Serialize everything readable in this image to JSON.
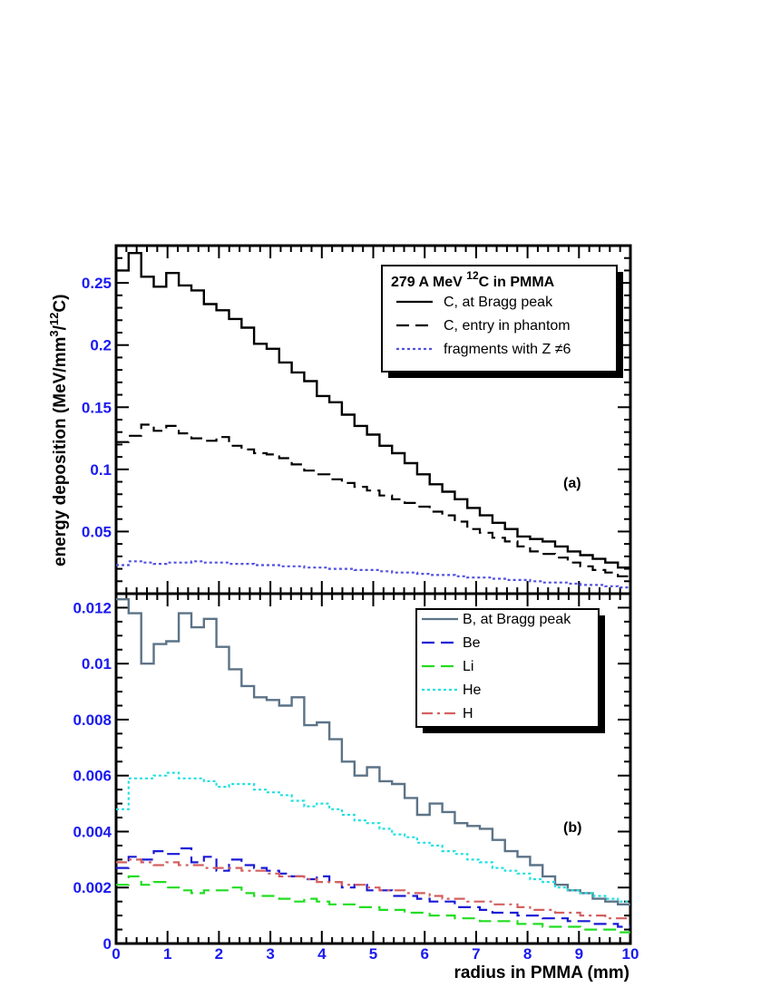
{
  "chart_data": [
    {
      "type": "line",
      "panel": "a",
      "panel_label": "(a)",
      "xlabel": "",
      "ylabel": "energy deposition (MeV/mm³/¹²C)",
      "ylabel_main": "energy deposition (MeV/mm",
      "ylabel_sup1": "3",
      "ylabel_mid": "/",
      "ylabel_sup2": "12",
      "ylabel_end": "C)",
      "xlim": [
        0,
        10
      ],
      "ylim": [
        0,
        0.28
      ],
      "yticks": [
        "0.05",
        "0.1",
        "0.15",
        "0.2",
        "0.25"
      ],
      "legend_title": "279 A MeV ¹²C in PMMA",
      "legend_title_a": "279 A MeV ",
      "legend_title_sup": "12",
      "legend_title_b": "C in PMMA",
      "legend_position": "top-right",
      "series": [
        {
          "name": "C, at Bragg peak",
          "color": "#000000",
          "style": "solid",
          "values": [
            0.26,
            0.274,
            0.255,
            0.247,
            0.258,
            0.248,
            0.244,
            0.233,
            0.228,
            0.221,
            0.214,
            0.201,
            0.197,
            0.186,
            0.178,
            0.171,
            0.159,
            0.154,
            0.144,
            0.135,
            0.128,
            0.119,
            0.113,
            0.105,
            0.096,
            0.088,
            0.082,
            0.076,
            0.069,
            0.063,
            0.057,
            0.052,
            0.046,
            0.044,
            0.042,
            0.038,
            0.034,
            0.031,
            0.028,
            0.025,
            0.021
          ]
        },
        {
          "name": "C, entry in phantom",
          "color": "#000000",
          "style": "dashed",
          "values": [
            0.122,
            0.127,
            0.136,
            0.131,
            0.135,
            0.129,
            0.125,
            0.123,
            0.126,
            0.119,
            0.116,
            0.113,
            0.112,
            0.109,
            0.104,
            0.099,
            0.096,
            0.092,
            0.089,
            0.086,
            0.083,
            0.079,
            0.076,
            0.073,
            0.07,
            0.066,
            0.063,
            0.058,
            0.052,
            0.049,
            0.045,
            0.042,
            0.038,
            0.034,
            0.032,
            0.029,
            0.025,
            0.022,
            0.019,
            0.017,
            0.014
          ]
        },
        {
          "name": "fragments with Z ≠6",
          "color": "#5050e0",
          "style": "dotted",
          "values": [
            0.023,
            0.026,
            0.025,
            0.024,
            0.025,
            0.025,
            0.026,
            0.025,
            0.025,
            0.024,
            0.024,
            0.023,
            0.023,
            0.022,
            0.022,
            0.021,
            0.021,
            0.02,
            0.02,
            0.019,
            0.019,
            0.018,
            0.017,
            0.017,
            0.016,
            0.015,
            0.015,
            0.014,
            0.013,
            0.013,
            0.012,
            0.011,
            0.011,
            0.01,
            0.009,
            0.009,
            0.008,
            0.007,
            0.007,
            0.006,
            0.005
          ]
        }
      ]
    },
    {
      "type": "line",
      "panel": "b",
      "panel_label": "(b)",
      "xlabel": "radius in PMMA (mm)",
      "ylabel": "",
      "xlim": [
        0,
        10
      ],
      "ylim": [
        0,
        0.0125
      ],
      "xticks": [
        "0",
        "1",
        "2",
        "3",
        "4",
        "5",
        "6",
        "7",
        "8",
        "9",
        "10"
      ],
      "yticks": [
        "0",
        "0.002",
        "0.004",
        "0.006",
        "0.008",
        "0.01",
        "0.012"
      ],
      "legend_position": "top-right",
      "series": [
        {
          "name": "B, at Bragg peak",
          "color": "#5c7387",
          "style": "solid",
          "values": [
            0.0123,
            0.0118,
            0.01,
            0.0107,
            0.0108,
            0.0118,
            0.0113,
            0.0116,
            0.0106,
            0.0098,
            0.0092,
            0.0088,
            0.0087,
            0.0085,
            0.0088,
            0.0078,
            0.0079,
            0.0073,
            0.0065,
            0.006,
            0.0063,
            0.0058,
            0.0057,
            0.0052,
            0.0046,
            0.005,
            0.0047,
            0.0043,
            0.0042,
            0.0041,
            0.0037,
            0.0033,
            0.0031,
            0.0028,
            0.0024,
            0.0021,
            0.0019,
            0.0018,
            0.0016,
            0.0015,
            0.0014
          ]
        },
        {
          "name": "Be",
          "color": "#1a1ad6",
          "style": "dashed",
          "values": [
            0.0027,
            0.0031,
            0.003,
            0.0033,
            0.0032,
            0.0034,
            0.0029,
            0.0031,
            0.0026,
            0.003,
            0.0028,
            0.0027,
            0.0026,
            0.0025,
            0.0024,
            0.0023,
            0.0024,
            0.0022,
            0.002,
            0.0021,
            0.0019,
            0.0019,
            0.0017,
            0.0017,
            0.0016,
            0.0015,
            0.0015,
            0.0013,
            0.0013,
            0.0012,
            0.0011,
            0.0011,
            0.001,
            0.001,
            0.0009,
            0.0009,
            0.0008,
            0.0008,
            0.0007,
            0.0007,
            0.0006
          ]
        },
        {
          "name": "Li",
          "color": "#22dd22",
          "style": "dashed",
          "values": [
            0.0021,
            0.0024,
            0.0021,
            0.0022,
            0.002,
            0.0019,
            0.0018,
            0.0019,
            0.0019,
            0.002,
            0.0018,
            0.0017,
            0.0017,
            0.0016,
            0.0015,
            0.0016,
            0.0015,
            0.0014,
            0.0014,
            0.0013,
            0.0013,
            0.0012,
            0.0012,
            0.0011,
            0.0011,
            0.001,
            0.001,
            0.0009,
            0.0009,
            0.0008,
            0.0008,
            0.0008,
            0.0007,
            0.0007,
            0.0006,
            0.0006,
            0.0006,
            0.0005,
            0.0005,
            0.0005,
            0.0004
          ]
        },
        {
          "name": "He",
          "color": "#22e0e0",
          "style": "dotted",
          "values": [
            0.0048,
            0.0059,
            0.0059,
            0.006,
            0.0061,
            0.0059,
            0.0059,
            0.0058,
            0.0056,
            0.0057,
            0.0057,
            0.0055,
            0.0054,
            0.0053,
            0.0051,
            0.0049,
            0.005,
            0.0048,
            0.0046,
            0.0044,
            0.0043,
            0.0041,
            0.0039,
            0.0038,
            0.0036,
            0.0035,
            0.0033,
            0.0032,
            0.003,
            0.0029,
            0.0027,
            0.0026,
            0.0025,
            0.0023,
            0.0022,
            0.002,
            0.0019,
            0.0018,
            0.0017,
            0.0016,
            0.0015
          ]
        },
        {
          "name": "H",
          "color": "#d46060",
          "style": "dashdot",
          "values": [
            0.0029,
            0.003,
            0.0029,
            0.0028,
            0.0029,
            0.0028,
            0.0028,
            0.0027,
            0.0027,
            0.0027,
            0.0026,
            0.0026,
            0.0025,
            0.0024,
            0.0024,
            0.0023,
            0.0022,
            0.0022,
            0.0021,
            0.0021,
            0.002,
            0.0019,
            0.0019,
            0.0018,
            0.0018,
            0.0017,
            0.0016,
            0.0016,
            0.0015,
            0.0015,
            0.0014,
            0.0014,
            0.0013,
            0.0012,
            0.0012,
            0.0011,
            0.0011,
            0.001,
            0.001,
            0.0009,
            0.0009
          ]
        }
      ]
    }
  ]
}
